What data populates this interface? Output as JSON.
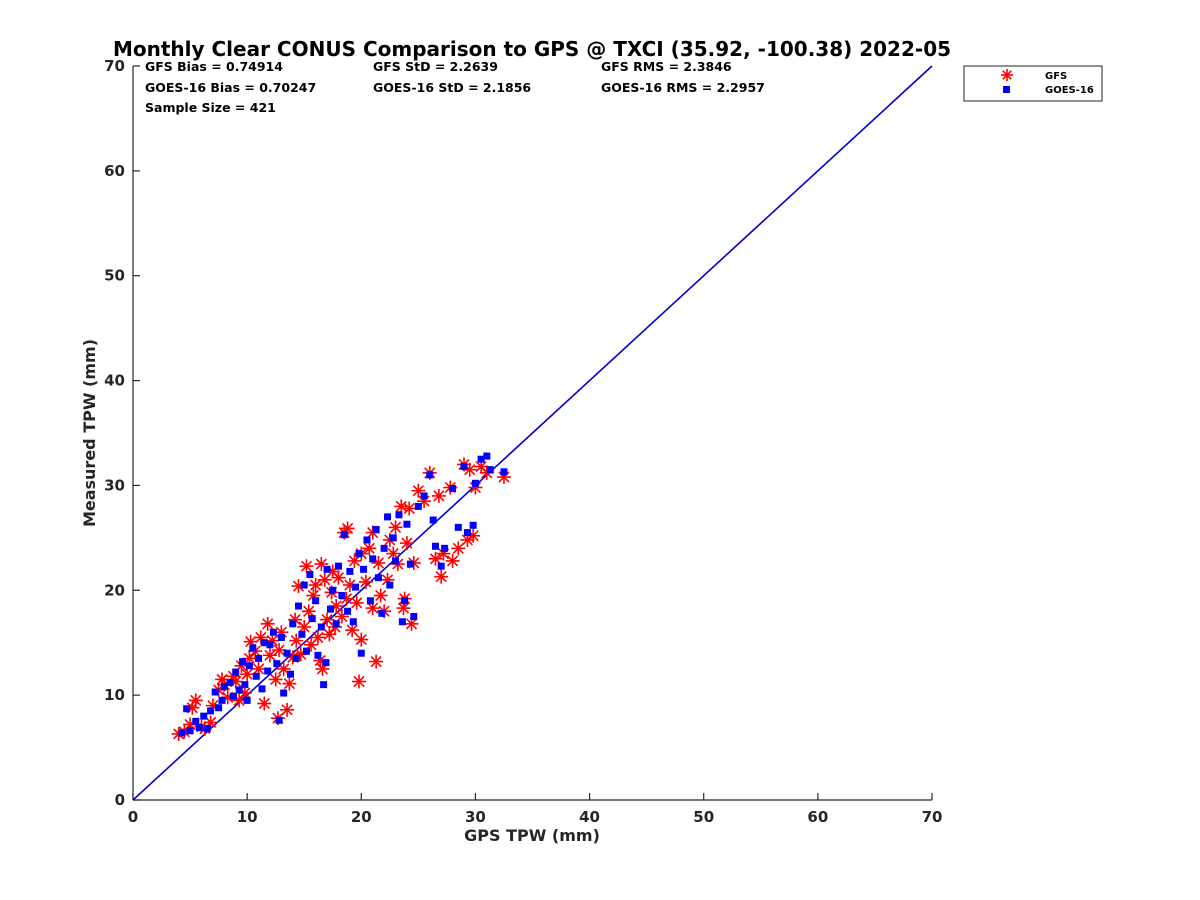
{
  "chart_data": {
    "type": "scatter",
    "title": "Monthly Clear CONUS Comparison to GPS @ TXCI (35.92, -100.38) 2022-05",
    "xlabel": "GPS TPW (mm)",
    "ylabel": "Measured TPW (mm)",
    "xlim": [
      0,
      70
    ],
    "ylim": [
      0,
      70
    ],
    "xticks": [
      "0",
      "10",
      "20",
      "30",
      "40",
      "50",
      "60",
      "70"
    ],
    "yticks": [
      "0",
      "10",
      "20",
      "30",
      "40",
      "50",
      "60",
      "70"
    ],
    "grid": false,
    "legend_position": "top-right",
    "stats": {
      "gfs_bias": "GFS Bias = 0.74914",
      "gfs_std": "GFS StD = 2.2639",
      "gfs_rms": "GFS RMS = 2.3846",
      "goes_bias": "GOES-16 Bias = 0.70247",
      "goes_std": "GOES-16 StD = 2.1856",
      "goes_rms": "GOES-16 RMS = 2.2957",
      "sample_size": "Sample Size = 421"
    },
    "reference_line": {
      "x": [
        0,
        70
      ],
      "y": [
        0,
        70
      ],
      "color": "#0000cc"
    },
    "series": [
      {
        "name": "GFS",
        "marker": "asterisk",
        "color": "#ff0000",
        "points": [
          [
            4.0,
            6.3
          ],
          [
            4.5,
            6.5
          ],
          [
            5.0,
            7.2
          ],
          [
            5.2,
            8.8
          ],
          [
            5.5,
            9.5
          ],
          [
            6.0,
            7.0
          ],
          [
            6.3,
            6.8
          ],
          [
            6.8,
            7.4
          ],
          [
            7.0,
            9.0
          ],
          [
            7.5,
            10.5
          ],
          [
            7.8,
            11.5
          ],
          [
            8.0,
            11.0
          ],
          [
            8.3,
            9.8
          ],
          [
            8.8,
            11.8
          ],
          [
            9.0,
            11.3
          ],
          [
            9.3,
            9.5
          ],
          [
            9.5,
            12.8
          ],
          [
            9.8,
            10.2
          ],
          [
            10.0,
            12.0
          ],
          [
            10.2,
            13.5
          ],
          [
            10.3,
            15.1
          ],
          [
            10.7,
            14.2
          ],
          [
            11.0,
            12.5
          ],
          [
            11.2,
            15.5
          ],
          [
            11.5,
            9.2
          ],
          [
            11.8,
            16.8
          ],
          [
            12.0,
            13.8
          ],
          [
            12.2,
            15.2
          ],
          [
            12.5,
            11.5
          ],
          [
            12.7,
            7.8
          ],
          [
            12.8,
            14.3
          ],
          [
            13.0,
            16.0
          ],
          [
            13.2,
            12.5
          ],
          [
            13.5,
            8.6
          ],
          [
            13.7,
            11.1
          ],
          [
            14.0,
            13.6
          ],
          [
            14.2,
            17.2
          ],
          [
            14.3,
            15.2
          ],
          [
            14.5,
            20.4
          ],
          [
            14.7,
            13.9
          ],
          [
            15.0,
            16.5
          ],
          [
            15.2,
            22.3
          ],
          [
            15.4,
            18.0
          ],
          [
            15.6,
            14.8
          ],
          [
            15.8,
            19.5
          ],
          [
            16.0,
            20.5
          ],
          [
            16.2,
            15.5
          ],
          [
            16.4,
            13.3
          ],
          [
            16.5,
            22.5
          ],
          [
            16.6,
            12.5
          ],
          [
            16.8,
            21.0
          ],
          [
            17.0,
            17.2
          ],
          [
            17.2,
            15.8
          ],
          [
            17.4,
            19.8
          ],
          [
            17.5,
            21.8
          ],
          [
            17.7,
            16.5
          ],
          [
            17.8,
            18.5
          ],
          [
            18.0,
            21.2
          ],
          [
            18.3,
            17.5
          ],
          [
            18.5,
            25.5
          ],
          [
            18.7,
            19.2
          ],
          [
            18.8,
            25.9
          ],
          [
            19.0,
            20.5
          ],
          [
            19.2,
            16.2
          ],
          [
            19.4,
            22.8
          ],
          [
            19.6,
            18.8
          ],
          [
            19.8,
            11.3
          ],
          [
            20.0,
            15.3
          ],
          [
            20.0,
            23.5
          ],
          [
            20.4,
            20.8
          ],
          [
            20.7,
            24.0
          ],
          [
            21.0,
            18.3
          ],
          [
            21.0,
            25.5
          ],
          [
            21.3,
            13.2
          ],
          [
            21.5,
            22.6
          ],
          [
            21.7,
            19.5
          ],
          [
            22.0,
            18.0
          ],
          [
            22.3,
            21.0
          ],
          [
            22.5,
            24.8
          ],
          [
            22.8,
            23.5
          ],
          [
            23.0,
            26.0
          ],
          [
            23.2,
            22.5
          ],
          [
            23.5,
            28.0
          ],
          [
            23.7,
            18.3
          ],
          [
            23.8,
            19.2
          ],
          [
            24.0,
            24.5
          ],
          [
            24.2,
            27.8
          ],
          [
            24.4,
            16.8
          ],
          [
            24.6,
            22.6
          ],
          [
            25.0,
            29.5
          ],
          [
            25.5,
            28.5
          ],
          [
            26.0,
            31.2
          ],
          [
            26.5,
            23.0
          ],
          [
            26.8,
            29.0
          ],
          [
            27.0,
            21.3
          ],
          [
            27.2,
            23.5
          ],
          [
            27.8,
            29.8
          ],
          [
            28.0,
            22.8
          ],
          [
            28.5,
            24.0
          ],
          [
            29.0,
            32.0
          ],
          [
            29.3,
            24.8
          ],
          [
            29.5,
            31.5
          ],
          [
            29.8,
            25.2
          ],
          [
            30.0,
            29.8
          ],
          [
            30.5,
            31.8
          ],
          [
            31.0,
            31.2
          ],
          [
            32.5,
            30.8
          ]
        ]
      },
      {
        "name": "GOES-16",
        "marker": "square",
        "color": "#0000ff",
        "points": [
          [
            4.3,
            6.4
          ],
          [
            4.7,
            8.7
          ],
          [
            5.0,
            6.6
          ],
          [
            5.5,
            7.5
          ],
          [
            5.8,
            6.9
          ],
          [
            6.2,
            8.0
          ],
          [
            6.5,
            6.8
          ],
          [
            6.8,
            8.5
          ],
          [
            7.2,
            10.3
          ],
          [
            7.5,
            8.8
          ],
          [
            7.8,
            9.5
          ],
          [
            8.0,
            10.8
          ],
          [
            8.5,
            11.2
          ],
          [
            8.8,
            9.9
          ],
          [
            9.0,
            12.2
          ],
          [
            9.3,
            10.5
          ],
          [
            9.6,
            13.2
          ],
          [
            9.8,
            11.0
          ],
          [
            10.0,
            9.5
          ],
          [
            10.2,
            12.8
          ],
          [
            10.5,
            14.5
          ],
          [
            10.8,
            11.8
          ],
          [
            11.0,
            13.5
          ],
          [
            11.3,
            10.6
          ],
          [
            11.5,
            15.0
          ],
          [
            11.8,
            12.3
          ],
          [
            12.0,
            14.8
          ],
          [
            12.3,
            16.0
          ],
          [
            12.6,
            13.0
          ],
          [
            12.8,
            7.6
          ],
          [
            13.0,
            15.5
          ],
          [
            13.2,
            10.2
          ],
          [
            13.5,
            14.0
          ],
          [
            13.8,
            12.0
          ],
          [
            14.0,
            16.8
          ],
          [
            14.3,
            13.5
          ],
          [
            14.5,
            18.5
          ],
          [
            14.8,
            15.8
          ],
          [
            15.0,
            20.5
          ],
          [
            15.2,
            14.2
          ],
          [
            15.5,
            21.5
          ],
          [
            15.7,
            17.3
          ],
          [
            16.0,
            19.0
          ],
          [
            16.2,
            13.8
          ],
          [
            16.5,
            16.5
          ],
          [
            16.7,
            11.0
          ],
          [
            16.9,
            13.1
          ],
          [
            17.0,
            22.0
          ],
          [
            17.3,
            18.2
          ],
          [
            17.5,
            20.0
          ],
          [
            17.8,
            16.8
          ],
          [
            18.0,
            22.3
          ],
          [
            18.3,
            19.5
          ],
          [
            18.5,
            25.3
          ],
          [
            18.8,
            18.0
          ],
          [
            19.0,
            21.8
          ],
          [
            19.3,
            17.0
          ],
          [
            19.5,
            20.3
          ],
          [
            19.8,
            23.5
          ],
          [
            20.0,
            14.0
          ],
          [
            20.2,
            22.0
          ],
          [
            20.5,
            24.8
          ],
          [
            20.8,
            19.0
          ],
          [
            21.0,
            23.0
          ],
          [
            21.3,
            25.8
          ],
          [
            21.5,
            21.2
          ],
          [
            21.8,
            17.8
          ],
          [
            22.0,
            24.0
          ],
          [
            22.3,
            27.0
          ],
          [
            22.5,
            20.5
          ],
          [
            22.8,
            25.0
          ],
          [
            23.0,
            22.8
          ],
          [
            23.3,
            27.2
          ],
          [
            23.6,
            17.0
          ],
          [
            23.8,
            19.0
          ],
          [
            24.0,
            26.3
          ],
          [
            24.3,
            22.5
          ],
          [
            24.6,
            17.5
          ],
          [
            25.0,
            28.0
          ],
          [
            25.5,
            29.0
          ],
          [
            26.0,
            31.0
          ],
          [
            26.3,
            26.7
          ],
          [
            26.5,
            24.2
          ],
          [
            27.0,
            22.3
          ],
          [
            27.3,
            24.0
          ],
          [
            28.0,
            29.7
          ],
          [
            28.5,
            26.0
          ],
          [
            29.0,
            31.8
          ],
          [
            29.3,
            25.5
          ],
          [
            29.8,
            26.2
          ],
          [
            30.0,
            30.2
          ],
          [
            30.5,
            32.5
          ],
          [
            31.0,
            32.8
          ],
          [
            31.3,
            31.5
          ],
          [
            32.5,
            31.3
          ]
        ]
      }
    ]
  }
}
